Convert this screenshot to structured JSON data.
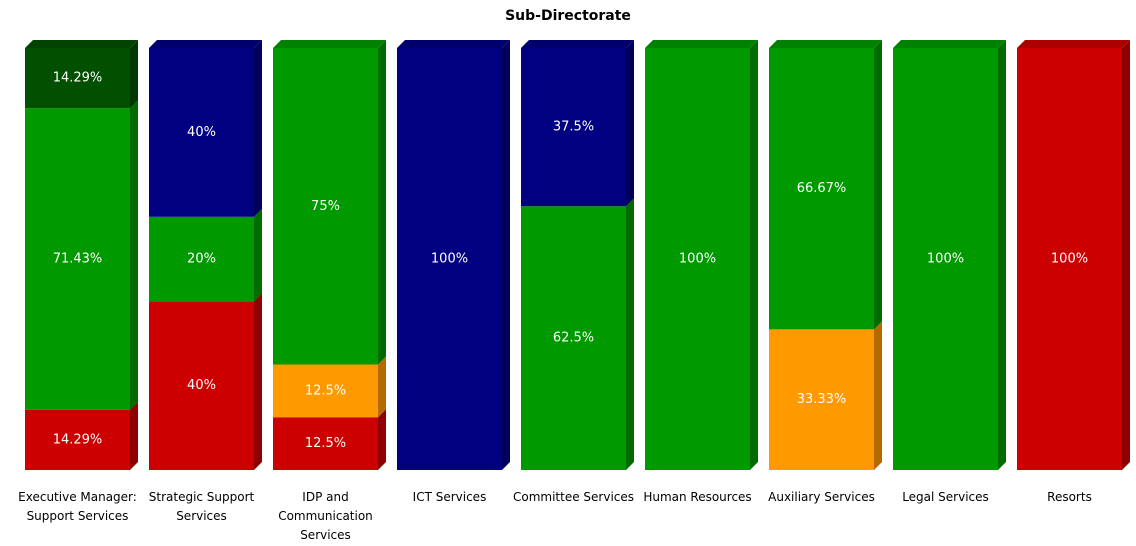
{
  "chart_data": {
    "type": "stacked_bar",
    "title": "Sub-Directorate",
    "categories": [
      "Executive Manager: Support Services",
      "Strategic Support Services",
      "IDP and Communication Services",
      "ICT Services",
      "Committee Services",
      "Human Resources",
      "Auxiliary Services",
      "Legal Services",
      "Resorts"
    ],
    "ylim": [
      0,
      100
    ],
    "series": [
      {
        "color": "#cc0000",
        "values": [
          14.29,
          40,
          12.5,
          null,
          null,
          null,
          null,
          null,
          100
        ],
        "value_labels": [
          "14.29%",
          "40%",
          "12.5%",
          null,
          null,
          null,
          null,
          null,
          "100%"
        ]
      },
      {
        "color": "#ff9900",
        "values": [
          null,
          null,
          12.5,
          null,
          null,
          null,
          33.33,
          null,
          null
        ],
        "value_labels": [
          null,
          null,
          "12.5%",
          null,
          null,
          null,
          "33.33%",
          null,
          null
        ]
      },
      {
        "color": "#009900",
        "values": [
          71.43,
          20,
          75,
          null,
          62.5,
          100,
          66.67,
          100,
          null
        ],
        "value_labels": [
          "71.43%",
          "20%",
          "75%",
          null,
          "62.5%",
          "100%",
          "66.67%",
          "100%",
          null
        ]
      },
      {
        "color": "#005000",
        "values": [
          14.29,
          null,
          null,
          null,
          null,
          null,
          null,
          null,
          null
        ],
        "value_labels": [
          "14.29%",
          null,
          null,
          null,
          null,
          null,
          null,
          null,
          null
        ]
      },
      {
        "color": "#000080",
        "values": [
          null,
          40,
          null,
          100,
          37.5,
          null,
          null,
          null,
          null
        ],
        "value_labels": [
          null,
          "40%",
          null,
          "100%",
          "37.5%",
          null,
          null,
          null,
          null
        ]
      }
    ]
  }
}
